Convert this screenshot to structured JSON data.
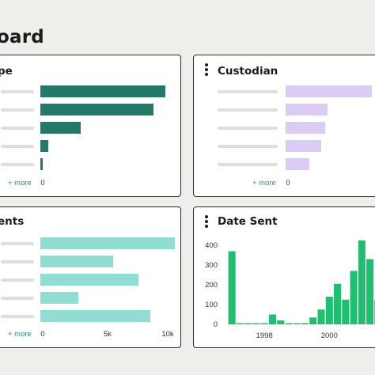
{
  "page": {
    "title": "oard"
  },
  "cards": {
    "type": {
      "title": "pe",
      "more": "+ more",
      "color": "#237868",
      "ticks": [
        "0"
      ],
      "bars": [
        0.93,
        0.84,
        0.3,
        0.06,
        0.02
      ]
    },
    "custodian": {
      "title": "Custodian",
      "more": "+ more",
      "color": "#dccbf5",
      "ticks": [
        "0"
      ],
      "bars": [
        0.92,
        0.45,
        0.42,
        0.38,
        0.25
      ]
    },
    "recipients": {
      "title": "ents",
      "more": "+ more",
      "color": "#8fddd3",
      "ticks": [
        "0",
        "5k",
        "10k"
      ],
      "tick_values": [
        0,
        5000,
        10000
      ],
      "values": [
        10000,
        5400,
        7300,
        2800,
        8200
      ]
    },
    "date_sent": {
      "title": "Date Sent",
      "color": "#1fbf71"
    }
  },
  "chart_data": {
    "type": "bar",
    "title": "Date Sent",
    "xlabel": "",
    "ylabel": "",
    "x_ticks": [
      "1998",
      "2000"
    ],
    "y_ticks": [
      "400",
      "300",
      "200",
      "100",
      "0"
    ],
    "ylim": [
      0,
      430
    ],
    "categories": [
      "1997-Q1",
      "1997-Q2",
      "1997-Q3",
      "1997-Q4",
      "1998-Q1",
      "1998-Q2",
      "1998-Q3",
      "1998-Q4",
      "1999-Q1",
      "1999-Q2",
      "1999-Q3",
      "1999-Q4",
      "2000-Q1",
      "2000-Q2",
      "2000-Q3",
      "2000-Q4",
      "2001-Q1",
      "2001-Q2",
      "2001-Q3"
    ],
    "values": [
      370,
      5,
      5,
      5,
      5,
      50,
      20,
      5,
      5,
      5,
      35,
      75,
      140,
      205,
      125,
      270,
      425,
      330,
      125
    ]
  }
}
